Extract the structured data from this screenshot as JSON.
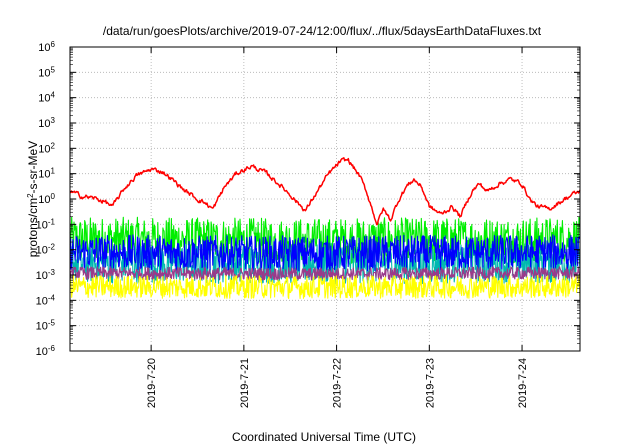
{
  "chart_data": {
    "type": "line",
    "title": "/data/run/goesPlots/archive/2019-07-24/12:00/flux/../flux/5daysEarthDataFluxes.txt",
    "xlabel": "Coordinated Universal Time (UTC)",
    "ylabel": {
      "prefix": "protons/cm",
      "sup": "2",
      "suffix": "-s-sr-MeV"
    },
    "yscale": "log",
    "ylim": [
      1e-06,
      1000000.0
    ],
    "xlim": [
      "2019-07-19T03:00",
      "2019-07-24T15:00"
    ],
    "grid": true,
    "legend": "none",
    "y_ticks": [
      {
        "value": 1e-06,
        "base": "10",
        "exp": "-6"
      },
      {
        "value": 1e-05,
        "base": "10",
        "exp": "-5"
      },
      {
        "value": 0.0001,
        "base": "10",
        "exp": "-4"
      },
      {
        "value": 0.001,
        "base": "10",
        "exp": "-3"
      },
      {
        "value": 0.01,
        "base": "10",
        "exp": "-2"
      },
      {
        "value": 0.1,
        "base": "10",
        "exp": "-1"
      },
      {
        "value": 1,
        "base": "10",
        "exp": "0"
      },
      {
        "value": 10,
        "base": "10",
        "exp": "1"
      },
      {
        "value": 100,
        "base": "10",
        "exp": "2"
      },
      {
        "value": 1000,
        "base": "10",
        "exp": "3"
      },
      {
        "value": 10000,
        "base": "10",
        "exp": "4"
      },
      {
        "value": 100000,
        "base": "10",
        "exp": "5"
      },
      {
        "value": 1000000,
        "base": "10",
        "exp": "6"
      }
    ],
    "x_ticks": [
      {
        "value": "2019-07-20T00:00",
        "label": "2019-7-20"
      },
      {
        "value": "2019-07-21T00:00",
        "label": "2019-7-21"
      },
      {
        "value": "2019-07-22T00:00",
        "label": "2019-7-22"
      },
      {
        "value": "2019-07-23T00:00",
        "label": "2019-7-23"
      },
      {
        "value": "2019-07-24T00:00",
        "label": "2019-7-24"
      }
    ],
    "series": [
      {
        "color": "#ff0000",
        "noise": 0.18,
        "points": [
          [
            "2019-07-19T03:00",
            2.0
          ],
          [
            "2019-07-19T06:00",
            1.3
          ],
          [
            "2019-07-19T09:00",
            1.1
          ],
          [
            "2019-07-19T12:00",
            0.8
          ],
          [
            "2019-07-19T14:00",
            0.5
          ],
          [
            "2019-07-19T17:00",
            2.5
          ],
          [
            "2019-07-19T20:00",
            8.0
          ],
          [
            "2019-07-20T00:00",
            15.0
          ],
          [
            "2019-07-20T03:00",
            12.0
          ],
          [
            "2019-07-20T06:00",
            5.0
          ],
          [
            "2019-07-20T09:00",
            2.0
          ],
          [
            "2019-07-20T12:00",
            1.0
          ],
          [
            "2019-07-20T14:00",
            0.7
          ],
          [
            "2019-07-20T16:00",
            0.4
          ],
          [
            "2019-07-20T19:00",
            3.0
          ],
          [
            "2019-07-20T22:00",
            10.0
          ],
          [
            "2019-07-21T02:00",
            20.0
          ],
          [
            "2019-07-21T06:00",
            10.0
          ],
          [
            "2019-07-21T09:00",
            4.0
          ],
          [
            "2019-07-21T12:00",
            1.5
          ],
          [
            "2019-07-21T14:00",
            0.7
          ],
          [
            "2019-07-21T16:00",
            0.35
          ],
          [
            "2019-07-21T19:00",
            2.0
          ],
          [
            "2019-07-21T22:00",
            10.0
          ],
          [
            "2019-07-22T01:00",
            30.0
          ],
          [
            "2019-07-22T03:00",
            35.0
          ],
          [
            "2019-07-22T06:00",
            8.0
          ],
          [
            "2019-07-22T08:00",
            1.5
          ],
          [
            "2019-07-22T09:30",
            0.3
          ],
          [
            "2019-07-22T10:30",
            0.1
          ],
          [
            "2019-07-22T12:00",
            0.4
          ],
          [
            "2019-07-22T14:00",
            0.15
          ],
          [
            "2019-07-22T16:00",
            0.9
          ],
          [
            "2019-07-22T18:00",
            3.0
          ],
          [
            "2019-07-22T20:00",
            6.0
          ],
          [
            "2019-07-22T22:00",
            3.0
          ],
          [
            "2019-07-23T00:00",
            0.5
          ],
          [
            "2019-07-23T03:00",
            0.25
          ],
          [
            "2019-07-23T06:00",
            0.5
          ],
          [
            "2019-07-23T08:00",
            0.2
          ],
          [
            "2019-07-23T11:00",
            2.0
          ],
          [
            "2019-07-23T13:00",
            4.0
          ],
          [
            "2019-07-23T15:00",
            2.0
          ],
          [
            "2019-07-23T18:00",
            4.0
          ],
          [
            "2019-07-23T21:00",
            6.0
          ],
          [
            "2019-07-24T00:00",
            4.0
          ],
          [
            "2019-07-24T02:00",
            1.0
          ],
          [
            "2019-07-24T04:00",
            0.5
          ],
          [
            "2019-07-24T07:00",
            0.4
          ],
          [
            "2019-07-24T10:00",
            0.8
          ],
          [
            "2019-07-24T13:00",
            1.5
          ],
          [
            "2019-07-24T15:00",
            2.0
          ]
        ]
      },
      {
        "color": "#00ee00",
        "noise": 0.9,
        "points": [
          [
            "2019-07-19T03:00",
            0.025
          ],
          [
            "2019-07-21T12:00",
            0.022
          ],
          [
            "2019-07-24T15:00",
            0.025
          ]
        ]
      },
      {
        "color": "#00b8b0",
        "noise": 0.8,
        "points": [
          [
            "2019-07-19T03:00",
            0.003
          ],
          [
            "2019-07-21T12:00",
            0.0028
          ],
          [
            "2019-07-24T15:00",
            0.003
          ]
        ]
      },
      {
        "color": "#0000ff",
        "noise": 0.7,
        "points": [
          [
            "2019-07-19T03:00",
            0.008
          ],
          [
            "2019-07-21T12:00",
            0.007
          ],
          [
            "2019-07-24T15:00",
            0.008
          ]
        ]
      },
      {
        "color": "#9a3a8a",
        "noise": 0.25,
        "points": [
          [
            "2019-07-19T03:00",
            0.0012
          ],
          [
            "2019-07-21T12:00",
            0.0011
          ],
          [
            "2019-07-24T15:00",
            0.0012
          ]
        ]
      },
      {
        "color": "#ffff00",
        "noise": 0.45,
        "points": [
          [
            "2019-07-19T03:00",
            0.00035
          ],
          [
            "2019-07-21T12:00",
            0.00033
          ],
          [
            "2019-07-24T15:00",
            0.00035
          ]
        ]
      }
    ]
  }
}
